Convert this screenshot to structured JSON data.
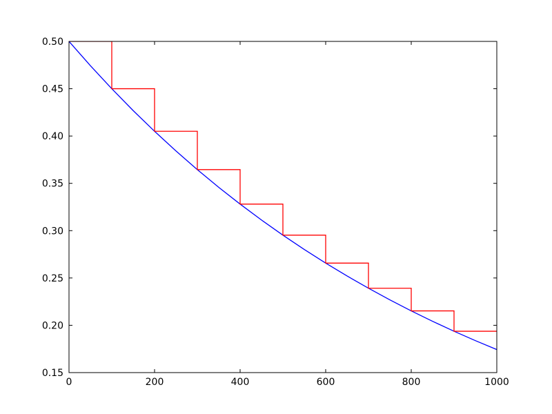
{
  "chart_data": {
    "type": "line",
    "xlim": [
      0,
      1000
    ],
    "xticks": [
      0,
      200,
      400,
      600,
      800,
      1000
    ],
    "ylim": [
      0.15,
      0.5
    ],
    "yticks": [
      {
        "value": 0.15,
        "label": "0.15"
      },
      {
        "value": 0.2,
        "label": "0.20"
      },
      {
        "value": 0.25,
        "label": "0.25"
      },
      {
        "value": 0.3,
        "label": "0.30"
      },
      {
        "value": 0.35,
        "label": "0.35"
      },
      {
        "value": 0.4,
        "label": "0.40"
      },
      {
        "value": 0.45,
        "label": "0.45"
      },
      {
        "value": 0.5,
        "label": "0.50"
      }
    ],
    "series": [
      {
        "color": "#0000ff",
        "x": [
          0,
          50,
          100,
          150,
          200,
          250,
          300,
          350,
          400,
          450,
          500,
          550,
          600,
          650,
          700,
          750,
          800,
          850,
          900,
          950,
          1000
        ],
        "values": [
          0.5,
          0.47434,
          0.45,
          0.42691,
          0.405,
          0.38422,
          0.3645,
          0.3458,
          0.32805,
          0.31122,
          0.29525,
          0.2801,
          0.26572,
          0.25209,
          0.23915,
          0.22688,
          0.21523,
          0.20419,
          0.19371,
          0.18377,
          0.17434
        ]
      },
      {
        "color": "#ff0000",
        "x": [
          0,
          100,
          100,
          200,
          200,
          300,
          300,
          400,
          400,
          500,
          500,
          600,
          600,
          700,
          700,
          800,
          800,
          900,
          900,
          1000
        ],
        "values": [
          0.5,
          0.5,
          0.45,
          0.45,
          0.405,
          0.405,
          0.3645,
          0.3645,
          0.32805,
          0.32805,
          0.29525,
          0.29525,
          0.26572,
          0.26572,
          0.23915,
          0.23915,
          0.21523,
          0.21523,
          0.19371,
          0.19371
        ]
      }
    ]
  }
}
